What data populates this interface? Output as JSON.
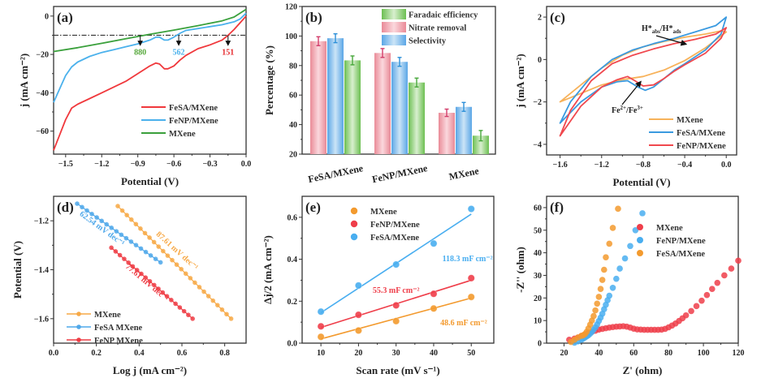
{
  "chart_data": [
    {
      "id": "a",
      "type": "line",
      "panel_label": "(a)",
      "xlabel": "Potential (V)",
      "ylabel": "j (mA cm⁻²)",
      "xlim": [
        -1.6,
        0.0
      ],
      "ylim": [
        -72,
        5
      ],
      "xticks": [
        -1.5,
        -1.2,
        -0.9,
        -0.6,
        -0.3,
        0.0
      ],
      "xtick_labels": [
        "-1.5",
        "-1.2",
        "-0.9",
        "-0.6",
        "-0.3",
        "0.0"
      ],
      "yticks": [
        0,
        -20,
        -40,
        -60
      ],
      "ytick_labels": [
        "0",
        "-20",
        "-40",
        "-60"
      ],
      "reference_line": {
        "y": -10,
        "style": "dash-dot"
      },
      "legend_position": "bottom-right",
      "series": [
        {
          "name": "FeSA/MXene",
          "color": "#f0383c",
          "x": [
            -1.6,
            -1.55,
            -1.5,
            -1.45,
            -1.4,
            -1.3,
            -1.2,
            -1.1,
            -1.0,
            -0.9,
            -0.8,
            -0.75,
            -0.72,
            -0.68,
            -0.65,
            -0.6,
            -0.55,
            -0.5,
            -0.4,
            -0.3,
            -0.2,
            -0.15,
            -0.1,
            -0.05,
            0.0
          ],
          "y": [
            -70,
            -62,
            -54,
            -48,
            -46,
            -43,
            -40,
            -37,
            -34,
            -30,
            -26,
            -24.5,
            -25,
            -27.5,
            -27.5,
            -26,
            -23,
            -20.5,
            -17,
            -15,
            -12.5,
            -10,
            -7,
            -3.5,
            0
          ]
        },
        {
          "name": "FeNP/MXene",
          "color": "#4bb1ec",
          "x": [
            -1.6,
            -1.55,
            -1.5,
            -1.45,
            -1.4,
            -1.35,
            -1.3,
            -1.2,
            -1.1,
            -1.0,
            -0.9,
            -0.8,
            -0.75,
            -0.72,
            -0.68,
            -0.65,
            -0.6,
            -0.55,
            -0.5,
            -0.4,
            -0.3,
            -0.2,
            -0.1,
            -0.05,
            0.0
          ],
          "y": [
            -45,
            -38,
            -31,
            -26.5,
            -24,
            -22.5,
            -21,
            -19,
            -17.5,
            -16,
            -14.5,
            -12.5,
            -11,
            -11,
            -12.5,
            -12.5,
            -11,
            -9,
            -7.5,
            -6.5,
            -5.5,
            -4.5,
            -3,
            -1.5,
            1.5
          ]
        },
        {
          "name": "MXene",
          "color": "#3aa03c",
          "x": [
            -1.6,
            -1.4,
            -1.2,
            -1.0,
            -0.8,
            -0.6,
            -0.4,
            -0.2,
            -0.1,
            0.0
          ],
          "y": [
            -18.5,
            -16.5,
            -14.2,
            -11.8,
            -9.5,
            -7.3,
            -5,
            -2.5,
            -0.5,
            3.5
          ]
        }
      ],
      "annotations": [
        {
          "text": "880",
          "color": "#55a83a",
          "x": -0.88
        },
        {
          "text": "562",
          "color": "#4bb1ec",
          "x": -0.56
        },
        {
          "text": "151",
          "color": "#e6282c",
          "x": -0.15
        }
      ]
    },
    {
      "id": "b",
      "type": "bar",
      "panel_label": "(b)",
      "xlabel": "",
      "ylabel": "Percentage (%)",
      "ylim": [
        20,
        120
      ],
      "yticks": [
        20,
        40,
        60,
        80,
        100,
        120
      ],
      "ytick_labels": [
        "20",
        "40",
        "60",
        "80",
        "100",
        "120"
      ],
      "categories": [
        "FeSA/MXene",
        "FeNP/MXene",
        "MXene"
      ],
      "legend_position": "top-right",
      "legend_order": [
        "Faradaic efficiency",
        "Nitrate removal",
        "Selectivity"
      ],
      "series": [
        {
          "name": "Nitrate removal",
          "color": "#e98a97",
          "values": [
            96.5,
            88.5,
            48
          ],
          "errors": [
            3,
            3,
            2.5
          ],
          "error_color": "#d23c6a"
        },
        {
          "name": "Selectivity",
          "color": "#6aaee8",
          "values": [
            98.5,
            82.5,
            52
          ],
          "errors": [
            3,
            3,
            3
          ],
          "error_color": "#2b8fd8"
        },
        {
          "name": "Faradaic efficiency",
          "color": "#79c660",
          "values": [
            83.5,
            68.5,
            32.5
          ],
          "errors": [
            3,
            3,
            3.5
          ],
          "error_color": "#46a73a"
        }
      ]
    },
    {
      "id": "c",
      "type": "line",
      "panel_label": "(c)",
      "xlabel": "Potential (V)",
      "ylabel": "j (mA cm⁻²)",
      "xlim": [
        -1.73,
        0.1
      ],
      "ylim": [
        -4.5,
        2.5
      ],
      "xticks": [
        -1.6,
        -1.2,
        -0.8,
        -0.4,
        0.0
      ],
      "xtick_labels": [
        "-1.6",
        "-1.2",
        "-0.8",
        "-0.4",
        "0.0"
      ],
      "yticks": [
        2,
        0,
        -2,
        -4
      ],
      "ytick_labels": [
        "2",
        "0",
        "-2",
        "-4"
      ],
      "legend_position": "bottom-right",
      "series": [
        {
          "name": "MXene",
          "color": "#f7b25a",
          "x": [
            -1.6,
            -1.4,
            -1.2,
            -1.0,
            -0.8,
            -0.6,
            -0.4,
            -0.2,
            0.0,
            -0.05,
            -0.2,
            -0.4,
            -0.6,
            -0.8,
            -1.0,
            -1.2,
            -1.4,
            -1.6
          ],
          "y": [
            -2.0,
            -1.6,
            -1.2,
            -0.95,
            -0.8,
            -0.5,
            -0.05,
            0.55,
            1.3,
            1.35,
            1.2,
            1.05,
            0.85,
            0.6,
            0.2,
            -0.4,
            -1.2,
            -2.0
          ]
        },
        {
          "name": "FeSA/MXene",
          "color": "#3a9ae0",
          "x": [
            -1.6,
            -1.4,
            -1.2,
            -1.05,
            -0.95,
            -0.85,
            -0.78,
            -0.7,
            -0.6,
            -0.5,
            -0.4,
            -0.2,
            -0.05,
            0.0,
            -0.1,
            -0.3,
            -0.5,
            -0.7,
            -0.9,
            -1.1,
            -1.3,
            -1.5,
            -1.6
          ],
          "y": [
            -3.0,
            -2.0,
            -1.3,
            -1.05,
            -1.0,
            -1.3,
            -1.45,
            -1.3,
            -0.9,
            -0.5,
            -0.2,
            0.45,
            1.2,
            2.0,
            1.6,
            1.3,
            1.0,
            0.75,
            0.45,
            0.0,
            -0.8,
            -2.0,
            -3.0
          ]
        },
        {
          "name": "FeNP/MXene",
          "color": "#f0484e",
          "x": [
            -1.6,
            -1.4,
            -1.2,
            -1.05,
            -0.95,
            -0.88,
            -0.8,
            -0.7,
            -0.6,
            -0.5,
            -0.4,
            -0.2,
            -0.05,
            0.0,
            -0.1,
            -0.3,
            -0.5,
            -0.7,
            -0.9,
            -1.1,
            -1.3,
            -1.5,
            -1.6
          ],
          "y": [
            -3.6,
            -2.2,
            -1.3,
            -0.95,
            -0.8,
            -1.0,
            -1.25,
            -1.2,
            -0.9,
            -0.55,
            -0.25,
            0.3,
            1.0,
            1.5,
            1.2,
            0.95,
            0.75,
            0.5,
            0.2,
            -0.2,
            -1.0,
            -2.4,
            -3.6
          ]
        }
      ],
      "annotations": [
        {
          "text": "H*abs/H*ads",
          "x": -0.45,
          "y": 0.8
        },
        {
          "text": "Fe²⁺/Fe³⁺",
          "x": -0.8,
          "y": -1.2
        }
      ]
    },
    {
      "id": "d",
      "type": "line",
      "panel_label": "(d)",
      "xlabel": "Log j (mA cm⁻²)",
      "ylabel": "Potential (V)",
      "xlim": [
        0.0,
        0.9
      ],
      "ylim": [
        -1.7,
        -1.1
      ],
      "xticks": [
        0.0,
        0.2,
        0.4,
        0.6,
        0.8
      ],
      "xtick_labels": [
        "0.0",
        "0.2",
        "0.4",
        "0.6",
        "0.8"
      ],
      "yticks": [
        -1.2,
        -1.4,
        -1.6
      ],
      "ytick_labels": [
        "-1.2",
        "-1.4",
        "-1.6"
      ],
      "legend_position": "bottom-left",
      "series": [
        {
          "name": "MXene",
          "color": "#f7a947",
          "x_range": [
            0.3,
            0.83
          ],
          "y_range": [
            -1.14,
            -1.6
          ],
          "points": 26,
          "slope_label": "87.61 mV dec⁻¹"
        },
        {
          "name": "FeSA MXene",
          "color": "#4fa8ea",
          "x_range": [
            0.11,
            0.5
          ],
          "y_range": [
            -1.13,
            -1.37
          ],
          "points": 18,
          "slope_label": "62.54 mV dec⁻¹"
        },
        {
          "name": "FeNP MXene",
          "color": "#ee3d45",
          "x_range": [
            0.27,
            0.65
          ],
          "y_range": [
            -1.31,
            -1.6
          ],
          "points": 20,
          "slope_label": "77.61 mV dec⁻¹"
        }
      ]
    },
    {
      "id": "e",
      "type": "scatter",
      "panel_label": "(e)",
      "xlabel": "Scan rate (mV s⁻¹)",
      "ylabel": "Δj/2 (mA cm⁻²)",
      "xlim": [
        5,
        56
      ],
      "ylim": [
        0.0,
        0.7
      ],
      "xticks": [
        10,
        20,
        30,
        40,
        50
      ],
      "xtick_labels": [
        "10",
        "20",
        "30",
        "40",
        "50"
      ],
      "yticks": [
        0.0,
        0.2,
        0.4,
        0.6
      ],
      "ytick_labels": [
        "0.0",
        "0.2",
        "0.4",
        "0.6"
      ],
      "legend_position": "top-left",
      "series": [
        {
          "name": "MXene",
          "color": "#f39a2e",
          "x": [
            10,
            20,
            30,
            40,
            50
          ],
          "y": [
            0.03,
            0.06,
            0.105,
            0.165,
            0.22
          ],
          "fit": [
            0.02,
            0.215
          ],
          "label": "48.6 mF cm⁻²"
        },
        {
          "name": "FeNP/MXene",
          "color": "#ef3e4a",
          "x": [
            10,
            20,
            30,
            40,
            50
          ],
          "y": [
            0.08,
            0.135,
            0.18,
            0.235,
            0.31
          ],
          "fit": [
            0.075,
            0.3
          ],
          "label": "55.3 mF cm⁻²"
        },
        {
          "name": "FeSA/MXene",
          "color": "#49aef0",
          "x": [
            10,
            20,
            30,
            40,
            50
          ],
          "y": [
            0.15,
            0.275,
            0.375,
            0.475,
            0.64
          ],
          "fit": [
            0.145,
            0.615
          ],
          "label": "118.3 mF cm⁻²"
        }
      ]
    },
    {
      "id": "f",
      "type": "scatter",
      "panel_label": "(f)",
      "xlabel": "Z' (ohm)",
      "ylabel": "-Z'' (ohm)",
      "xlim": [
        10,
        120
      ],
      "ylim": [
        0,
        65
      ],
      "xticks": [
        20,
        40,
        60,
        80,
        100,
        120
      ],
      "xtick_labels": [
        "20",
        "40",
        "60",
        "80",
        "100",
        "120"
      ],
      "yticks": [
        0,
        10,
        20,
        30,
        40,
        50,
        60
      ],
      "ytick_labels": [
        "0",
        "10",
        "20",
        "30",
        "40",
        "50",
        "60"
      ],
      "legend_position": "center-right",
      "series": [
        {
          "name": "MXene",
          "color": "#ef3e4a",
          "x": [
            23,
            26,
            28,
            30,
            32,
            34,
            36,
            38,
            40,
            42,
            44,
            46,
            48,
            50,
            52,
            54,
            56,
            58,
            60,
            62,
            64,
            66,
            68,
            70,
            72,
            74,
            76,
            78,
            80,
            82,
            84,
            86,
            88,
            90,
            93,
            96,
            99,
            102,
            105,
            108,
            112,
            116,
            120
          ],
          "y": [
            1.5,
            2,
            2.5,
            3.2,
            3.8,
            4.5,
            5,
            5.5,
            6,
            6.3,
            6.6,
            6.9,
            7.1,
            7.3,
            7.4,
            7.5,
            7.3,
            6.9,
            6.4,
            6.1,
            6,
            5.9,
            5.9,
            5.9,
            5.9,
            5.9,
            6,
            6.3,
            7,
            7.8,
            8.7,
            9.8,
            11,
            12.3,
            14.2,
            16.4,
            18.8,
            21.3,
            24,
            26.7,
            30,
            33,
            36.5
          ]
        },
        {
          "name": "FeNP/MXene",
          "color": "#49aef0",
          "x": [
            26,
            28,
            30,
            31,
            32,
            33,
            34,
            35,
            36,
            37,
            38,
            39,
            40,
            41,
            42,
            43,
            44,
            45,
            46,
            48,
            50,
            52,
            55,
            58,
            61,
            65
          ],
          "y": [
            0.2,
            0.8,
            1.5,
            2,
            2.5,
            3,
            3.5,
            4.2,
            5,
            6,
            7,
            8.3,
            9.8,
            11.3,
            13,
            15,
            17,
            19,
            21,
            24.5,
            28.5,
            33,
            37.5,
            43,
            50,
            57.5
          ]
        },
        {
          "name": "FeSA/MXene",
          "color": "#f39a2e",
          "x": [
            24,
            26,
            28,
            30,
            31,
            32,
            33,
            34,
            35,
            36,
            37,
            38,
            39,
            40,
            41,
            42,
            43,
            44,
            46,
            48,
            51
          ],
          "y": [
            0.5,
            1.5,
            2.5,
            3.2,
            3.5,
            4,
            5,
            6.5,
            8.2,
            10,
            12,
            14.5,
            17.5,
            20.5,
            24,
            28,
            32.5,
            38,
            44,
            51,
            59.5
          ]
        }
      ]
    }
  ]
}
